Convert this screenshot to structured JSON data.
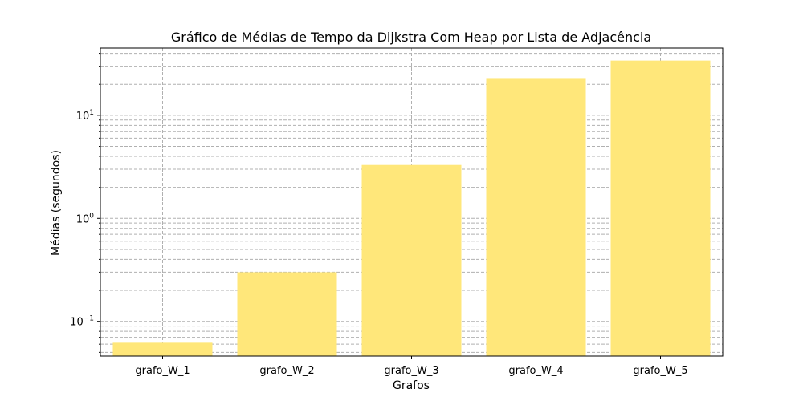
{
  "chart_data": {
    "type": "bar",
    "title": "Gráfico de Médias de Tempo da Dijkstra Com Heap por Lista de Adjacência",
    "xlabel": "Grafos",
    "ylabel": "Médias (segundos)",
    "categories": [
      "grafo_W_1",
      "grafo_W_2",
      "grafo_W_3",
      "grafo_W_4",
      "grafo_W_5"
    ],
    "values": [
      0.062,
      0.3,
      3.3,
      23.0,
      34.0
    ],
    "yscale": "log",
    "ylim": [
      0.046,
      45
    ],
    "y_major_ticks": [
      {
        "value": 0.1,
        "base": "10",
        "exp": "−1"
      },
      {
        "value": 1,
        "base": "10",
        "exp": "0"
      },
      {
        "value": 10,
        "base": "10",
        "exp": "1"
      }
    ],
    "grid": true,
    "bar_color": "#ffe77a"
  }
}
